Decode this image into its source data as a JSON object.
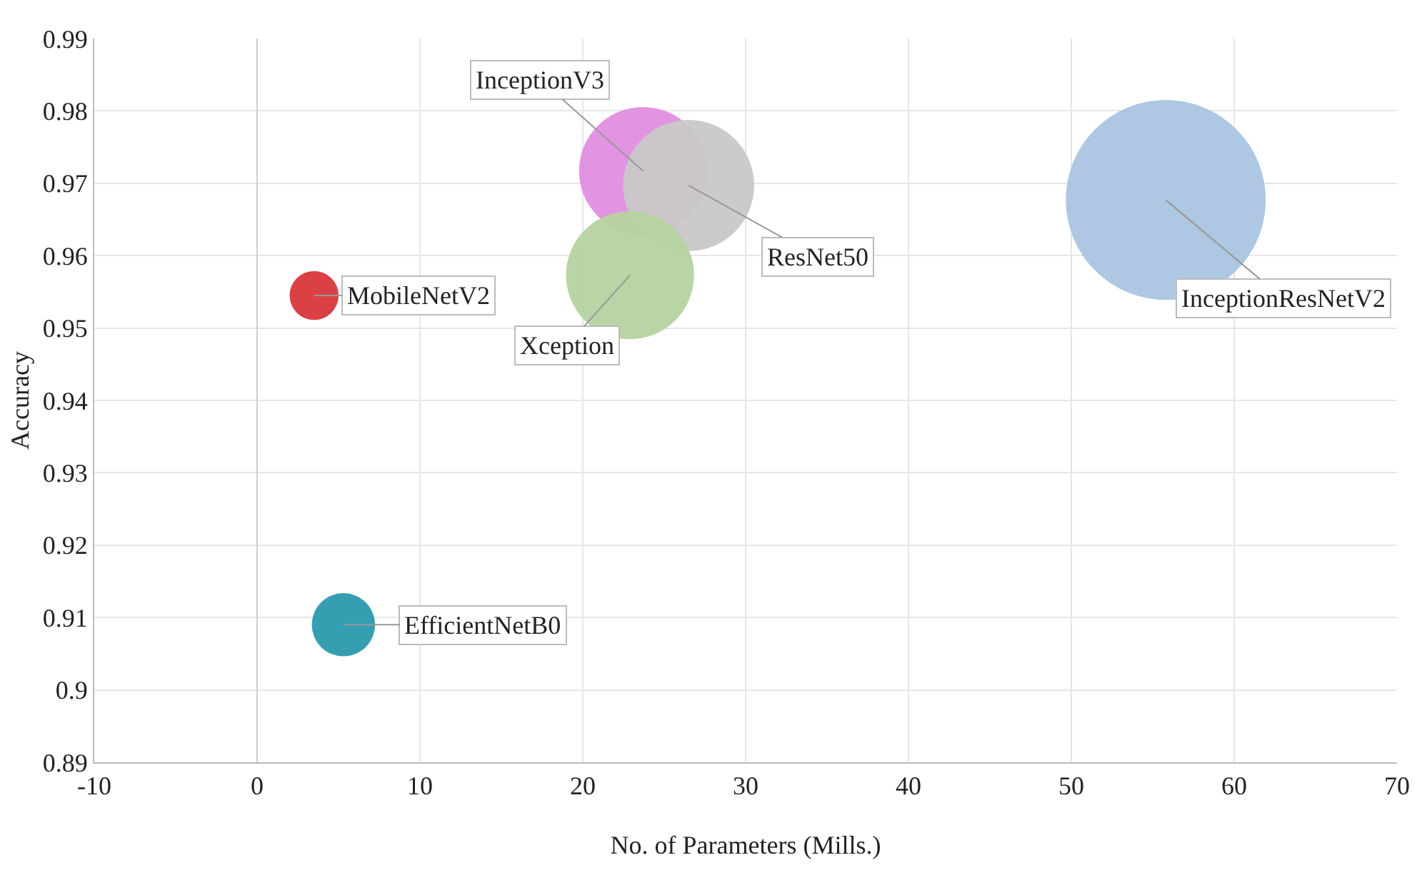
{
  "chart_data": {
    "type": "bubble",
    "xlabel": "No. of Parameters (Mills.)",
    "ylabel": "Accuracy",
    "xlim": [
      -10,
      70
    ],
    "xticks": [
      -10,
      0,
      10,
      20,
      30,
      40,
      50,
      60,
      70
    ],
    "ylim": [
      0.89,
      0.99
    ],
    "yticks": [
      0.89,
      0.9,
      0.91,
      0.92,
      0.93,
      0.94,
      0.95,
      0.96,
      0.97,
      0.98,
      0.99
    ],
    "grid": true,
    "legend": false,
    "series": [
      {
        "name": "MobileNetV2",
        "color": "#d9373a",
        "x": [
          3.5
        ],
        "values": [
          0.9545
        ],
        "sizes": [
          0.06
        ]
      },
      {
        "name": "EfficientNetB0",
        "color": "#2a9aad",
        "x": [
          5.3
        ],
        "values": [
          0.909
        ],
        "sizes": [
          0.1
        ]
      },
      {
        "name": "InceptionV3",
        "color": "#e08ee0",
        "x": [
          23.7
        ],
        "values": [
          0.9717
        ],
        "sizes": [
          0.41
        ]
      },
      {
        "name": "ResNet50",
        "color": "#c8c8c8",
        "x": [
          26.5
        ],
        "values": [
          0.9697
        ],
        "sizes": [
          0.43
        ]
      },
      {
        "name": "Xception",
        "color": "#b5d3a0",
        "x": [
          22.9
        ],
        "values": [
          0.9573
        ],
        "sizes": [
          0.41
        ]
      },
      {
        "name": "InceptionResNetV2",
        "color": "#aac4e0",
        "x": [
          55.8
        ],
        "values": [
          0.9677
        ],
        "sizes": [
          1
        ]
      }
    ]
  }
}
